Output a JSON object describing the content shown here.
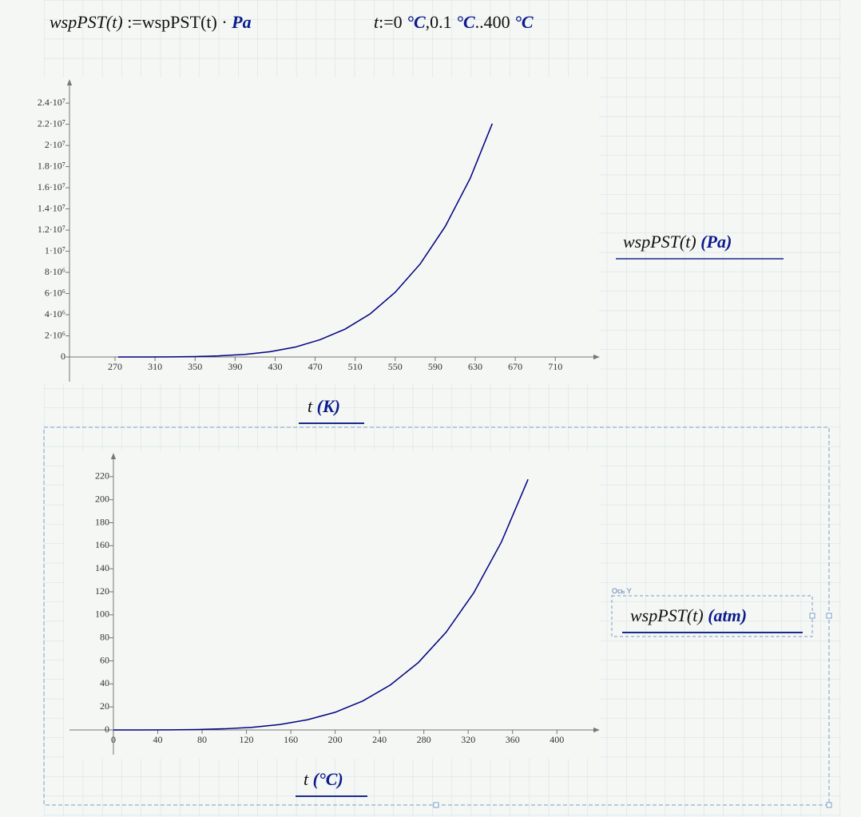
{
  "header": {
    "formula1": [
      "wspPST",
      "(t)",
      ":=",
      "wspPST",
      "(t)",
      "·",
      "Pa"
    ],
    "formula2": [
      "t",
      ":=",
      "0",
      "°C",
      ",",
      "0.1",
      "°C",
      "..",
      "400",
      "°C"
    ]
  },
  "chart_data": [
    {
      "type": "line",
      "color": "#000080",
      "x_label": "t",
      "x_unit": "(K)",
      "y_label": "wspPST(t)",
      "y_unit": "(Pa)",
      "x": [
        273.15,
        300,
        325,
        350,
        373.15,
        400,
        425,
        450,
        475,
        500,
        525,
        550,
        575,
        600,
        625,
        647
      ],
      "values": [
        611,
        3537,
        13500,
        41700,
        101400,
        245800,
        500000,
        932000,
        1640000,
        2640000,
        4080000,
        6120000,
        8800000,
        12340000,
        16900000,
        22060000
      ],
      "xlim": [
        224.5,
        753.7
      ],
      "ylim": [
        -2340000,
        26200000
      ],
      "xticks": [
        270,
        310,
        350,
        390,
        430,
        470,
        510,
        550,
        590,
        630,
        670,
        710
      ],
      "yticks": [
        0,
        {
          "value": 2000000,
          "label": "2·10⁶"
        },
        {
          "value": 4000000,
          "label": "4·10⁶"
        },
        {
          "value": 6000000,
          "label": "6·10⁶"
        },
        {
          "value": 8000000,
          "label": "8·10⁶"
        },
        {
          "value": 10000000,
          "label": "1·10⁷"
        },
        {
          "value": 12000000,
          "label": "1.2·10⁷"
        },
        {
          "value": 14000000,
          "label": "1.4·10⁷"
        },
        {
          "value": 16000000,
          "label": "1.6·10⁷"
        },
        {
          "value": 18000000,
          "label": "1.8·10⁷"
        },
        {
          "value": 20000000,
          "label": "2·10⁷"
        },
        {
          "value": 22000000,
          "label": "2.2·10⁷"
        },
        {
          "value": 24000000,
          "label": "2.4·10⁷"
        }
      ]
    },
    {
      "type": "line",
      "color": "#000080",
      "axis_caption": "Ось Y",
      "x_label": "t",
      "x_unit": "(°C)",
      "y_label": "wspPST(t)",
      "y_unit": "(atm)",
      "x": [
        0,
        25,
        50,
        75,
        100,
        125,
        150,
        175,
        200,
        225,
        250,
        275,
        300,
        325,
        350,
        374
      ],
      "values": [
        0.006,
        0.031,
        0.122,
        0.381,
        1.0,
        2.29,
        4.7,
        8.83,
        15.34,
        25.2,
        39.2,
        58.5,
        84.8,
        119.1,
        163.3,
        217.7
      ],
      "xlim": [
        -39.6,
        438
      ],
      "ylim": [
        -21.5,
        240
      ],
      "xticks": [
        0,
        40,
        80,
        120,
        160,
        200,
        240,
        280,
        320,
        360,
        400
      ],
      "yticks": [
        0,
        20,
        40,
        60,
        80,
        100,
        120,
        140,
        160,
        180,
        200,
        220
      ]
    }
  ]
}
